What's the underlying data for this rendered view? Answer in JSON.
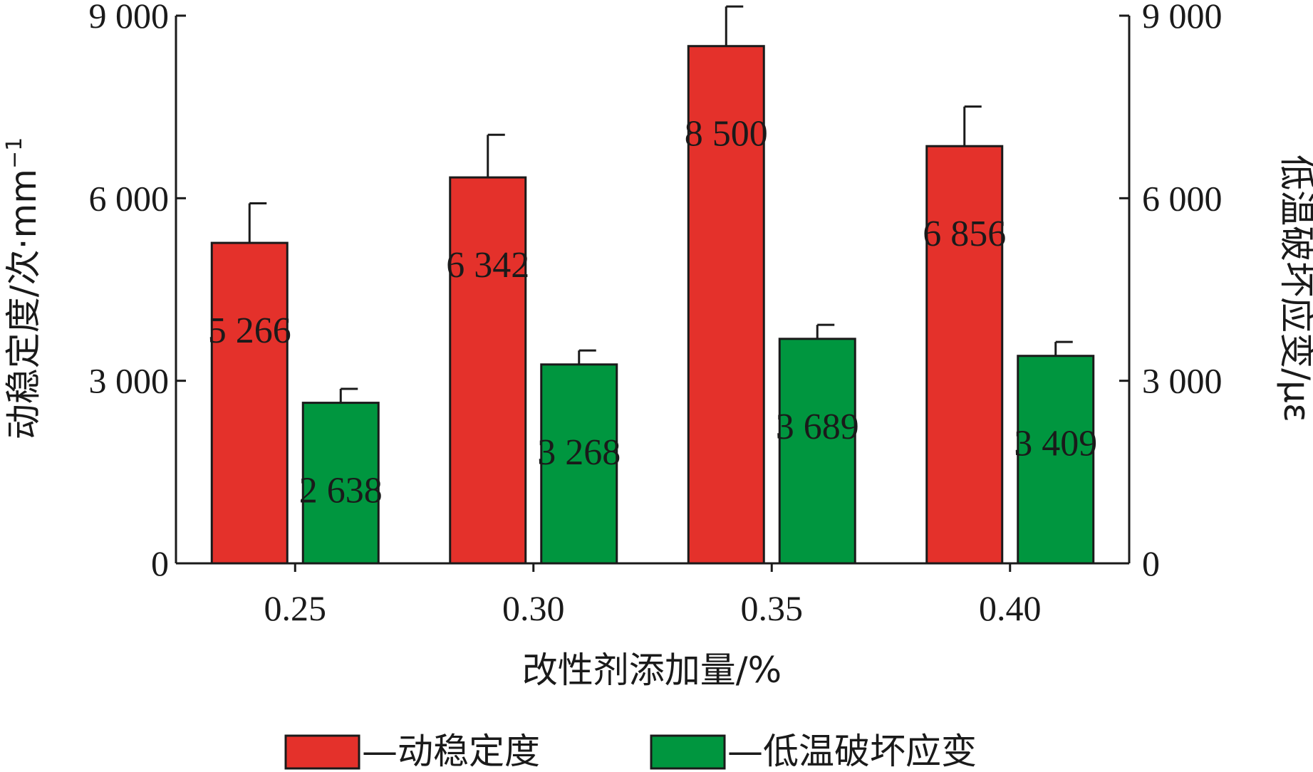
{
  "chart_data": {
    "type": "bar",
    "categories": [
      "0.25",
      "0.30",
      "0.35",
      "0.40"
    ],
    "series": [
      {
        "name": "—动稳定度",
        "values": [
          5266,
          6342,
          8500,
          6856
        ],
        "errors": [
          650,
          700,
          650,
          650
        ],
        "labels": [
          "5 266",
          "6 342",
          "8 500",
          "6 856"
        ],
        "color": "#e4312b",
        "axis": "left"
      },
      {
        "name": "—低温破坏应变",
        "values": [
          2638,
          3268,
          3689,
          3409
        ],
        "errors": [
          230,
          230,
          230,
          230
        ],
        "labels": [
          "2 638",
          "3 268",
          "3 689",
          "3 409"
        ],
        "color": "#00963f",
        "axis": "right"
      }
    ],
    "xlabel": "改性剂添加量/%",
    "ylabel_left": "动稳定度/次·mm",
    "ylabel_left_sup": "−1",
    "ylabel_right": "低温破坏应变/με",
    "ylim": [
      0,
      9000
    ],
    "yticks": [
      0,
      3000,
      6000,
      9000
    ],
    "ytick_labels": [
      "0",
      "3 000",
      "6 000",
      "9 000"
    ],
    "grid": false,
    "legend_position": "bottom"
  }
}
